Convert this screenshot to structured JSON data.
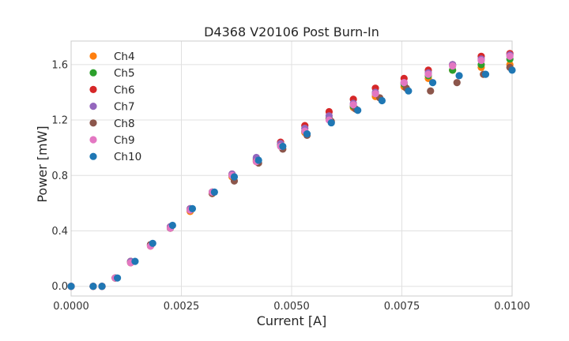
{
  "chart_data": {
    "type": "scatter",
    "title": "D4368 V20106 Post Burn-In",
    "xlabel": "Current [A]",
    "ylabel": "Power [mW]",
    "xlim": [
      0.0,
      0.01
    ],
    "ylim": [
      -0.07,
      1.77
    ],
    "grid": true,
    "legend_position": "top-left",
    "x_ticks": [
      0.0,
      0.0025,
      0.005,
      0.0075,
      0.01
    ],
    "x_tick_labels": [
      "0.0000",
      "0.0025",
      "0.0050",
      "0.0075",
      "0.0100"
    ],
    "y_ticks": [
      0.0,
      0.4,
      0.8,
      1.2,
      1.6
    ],
    "y_tick_labels": [
      "0.0",
      "0.4",
      "0.8",
      "1.2",
      "1.6"
    ],
    "series": [
      {
        "name": "Ch4",
        "color": "#ff7f0e",
        "x": [
          0.0,
          0.0005,
          0.0007,
          0.001,
          0.00135,
          0.0018,
          0.00225,
          0.0027,
          0.0032,
          0.00365,
          0.0042,
          0.00475,
          0.0053,
          0.00585,
          0.0064,
          0.0069,
          0.00755,
          0.0081,
          0.00865,
          0.0093,
          0.00995
        ],
        "y": [
          0.0,
          0.0,
          0.0,
          0.06,
          0.17,
          0.29,
          0.42,
          0.54,
          0.67,
          0.79,
          0.9,
          1.02,
          1.11,
          1.21,
          1.29,
          1.37,
          1.44,
          1.5,
          1.56,
          1.58,
          1.6
        ]
      },
      {
        "name": "Ch5",
        "color": "#2ca02c",
        "x": [
          0.0,
          0.0005,
          0.0007,
          0.001,
          0.00135,
          0.0018,
          0.00225,
          0.0027,
          0.0032,
          0.00365,
          0.0042,
          0.00475,
          0.0053,
          0.00585,
          0.0064,
          0.0069,
          0.00755,
          0.0081,
          0.00865,
          0.0093,
          0.00995
        ],
        "y": [
          0.0,
          0.0,
          0.0,
          0.06,
          0.18,
          0.3,
          0.42,
          0.55,
          0.68,
          0.8,
          0.91,
          1.02,
          1.12,
          1.21,
          1.3,
          1.39,
          1.46,
          1.52,
          1.56,
          1.6,
          1.64
        ]
      },
      {
        "name": "Ch6",
        "color": "#d62728",
        "x": [
          0.0,
          0.0005,
          0.0007,
          0.001,
          0.00135,
          0.0018,
          0.00225,
          0.0027,
          0.0032,
          0.00365,
          0.0042,
          0.00475,
          0.0053,
          0.00585,
          0.0064,
          0.0069,
          0.00755,
          0.0081,
          0.00865,
          0.0093,
          0.00995
        ],
        "y": [
          0.0,
          0.0,
          0.0,
          0.06,
          0.18,
          0.3,
          0.43,
          0.56,
          0.68,
          0.81,
          0.92,
          1.04,
          1.16,
          1.26,
          1.35,
          1.43,
          1.5,
          1.56,
          1.6,
          1.66,
          1.68
        ]
      },
      {
        "name": "Ch7",
        "color": "#9467bd",
        "x": [
          0.0,
          0.0005,
          0.0007,
          0.001,
          0.00135,
          0.0018,
          0.00225,
          0.0027,
          0.0032,
          0.00365,
          0.0042,
          0.00475,
          0.0053,
          0.00585,
          0.0064,
          0.0069,
          0.00755,
          0.0081,
          0.00865,
          0.0093,
          0.00995
        ],
        "y": [
          0.0,
          0.0,
          0.0,
          0.06,
          0.18,
          0.3,
          0.43,
          0.56,
          0.68,
          0.81,
          0.93,
          1.03,
          1.14,
          1.23,
          1.32,
          1.4,
          1.47,
          1.54,
          1.6,
          1.64,
          1.67
        ]
      },
      {
        "name": "Ch8",
        "color": "#8c564b",
        "x": [
          0.0,
          0.0005,
          0.0007,
          0.001,
          0.00135,
          0.0018,
          0.00225,
          0.0027,
          0.0032,
          0.0037,
          0.00425,
          0.0048,
          0.00535,
          0.0059,
          0.00645,
          0.007,
          0.0076,
          0.00815,
          0.00875,
          0.00935,
          0.00995
        ],
        "y": [
          0.0,
          0.0,
          0.0,
          0.06,
          0.17,
          0.3,
          0.42,
          0.55,
          0.67,
          0.76,
          0.89,
          0.99,
          1.09,
          1.19,
          1.28,
          1.36,
          1.43,
          1.41,
          1.47,
          1.53,
          1.58
        ]
      },
      {
        "name": "Ch9",
        "color": "#e377c2",
        "x": [
          0.0,
          0.0005,
          0.0007,
          0.001,
          0.00135,
          0.0018,
          0.00225,
          0.0027,
          0.0032,
          0.00365,
          0.0042,
          0.00475,
          0.0053,
          0.00585,
          0.0064,
          0.0069,
          0.00755,
          0.0081,
          0.00865,
          0.0093,
          0.00995
        ],
        "y": [
          0.0,
          0.0,
          0.0,
          0.06,
          0.17,
          0.29,
          0.42,
          0.55,
          0.68,
          0.8,
          0.9,
          1.01,
          1.12,
          1.2,
          1.31,
          1.39,
          1.47,
          1.53,
          1.59,
          1.63,
          1.66
        ]
      },
      {
        "name": "Ch10",
        "color": "#1f77b4",
        "x": [
          0.0,
          0.0005,
          0.0007,
          0.00105,
          0.00145,
          0.00185,
          0.0023,
          0.00275,
          0.00325,
          0.0037,
          0.00425,
          0.0048,
          0.00535,
          0.0059,
          0.0065,
          0.00705,
          0.00765,
          0.0082,
          0.0088,
          0.0094,
          0.01
        ],
        "y": [
          0.0,
          0.0,
          0.0,
          0.06,
          0.18,
          0.31,
          0.44,
          0.56,
          0.68,
          0.79,
          0.91,
          1.01,
          1.1,
          1.18,
          1.27,
          1.34,
          1.41,
          1.47,
          1.52,
          1.53,
          1.56
        ]
      }
    ]
  }
}
